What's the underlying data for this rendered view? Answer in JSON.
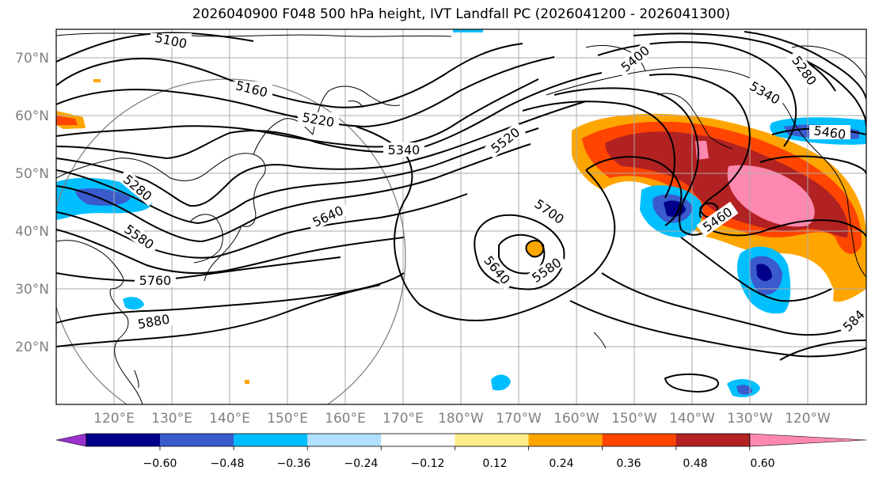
{
  "title": "2026040900 F048 500 hPa height, IVT Landfall PC (2026041200 - 2026041300)",
  "latitude_labels": [
    "70°N",
    "60°N",
    "50°N",
    "40°N",
    "30°N",
    "20°N"
  ],
  "longitude_labels": [
    "120°E",
    "130°E",
    "140°E",
    "150°E",
    "160°E",
    "170°E",
    "180°W",
    "170°W",
    "160°W",
    "150°W",
    "140°W",
    "130°W",
    "120°W"
  ],
  "contour_labels": [
    "5100",
    "5160",
    "5220",
    "5340",
    "5520",
    "5280",
    "5580",
    "5640",
    "5760",
    "5880",
    "5700",
    "5640",
    "5580",
    "5460",
    "5400",
    "5280",
    "5340",
    "5460",
    "584"
  ],
  "colorbar": {
    "colors": [
      "#9932cc",
      "#00008b",
      "#3a5bcc",
      "#00bfff",
      "#b0e0ff",
      "#ffffff",
      "#ffed8a",
      "#ffa500",
      "#ff4500",
      "#b22222",
      "#ff88b0"
    ],
    "tick_labels": [
      "−0.60",
      "−0.48",
      "−0.36",
      "−0.24",
      "−0.12",
      "0.12",
      "0.24",
      "0.36",
      "0.48",
      "0.60"
    ]
  },
  "colors": {
    "land_outline": "#000000",
    "grid": "#a9a9a9",
    "tick_label": "#808080"
  }
}
